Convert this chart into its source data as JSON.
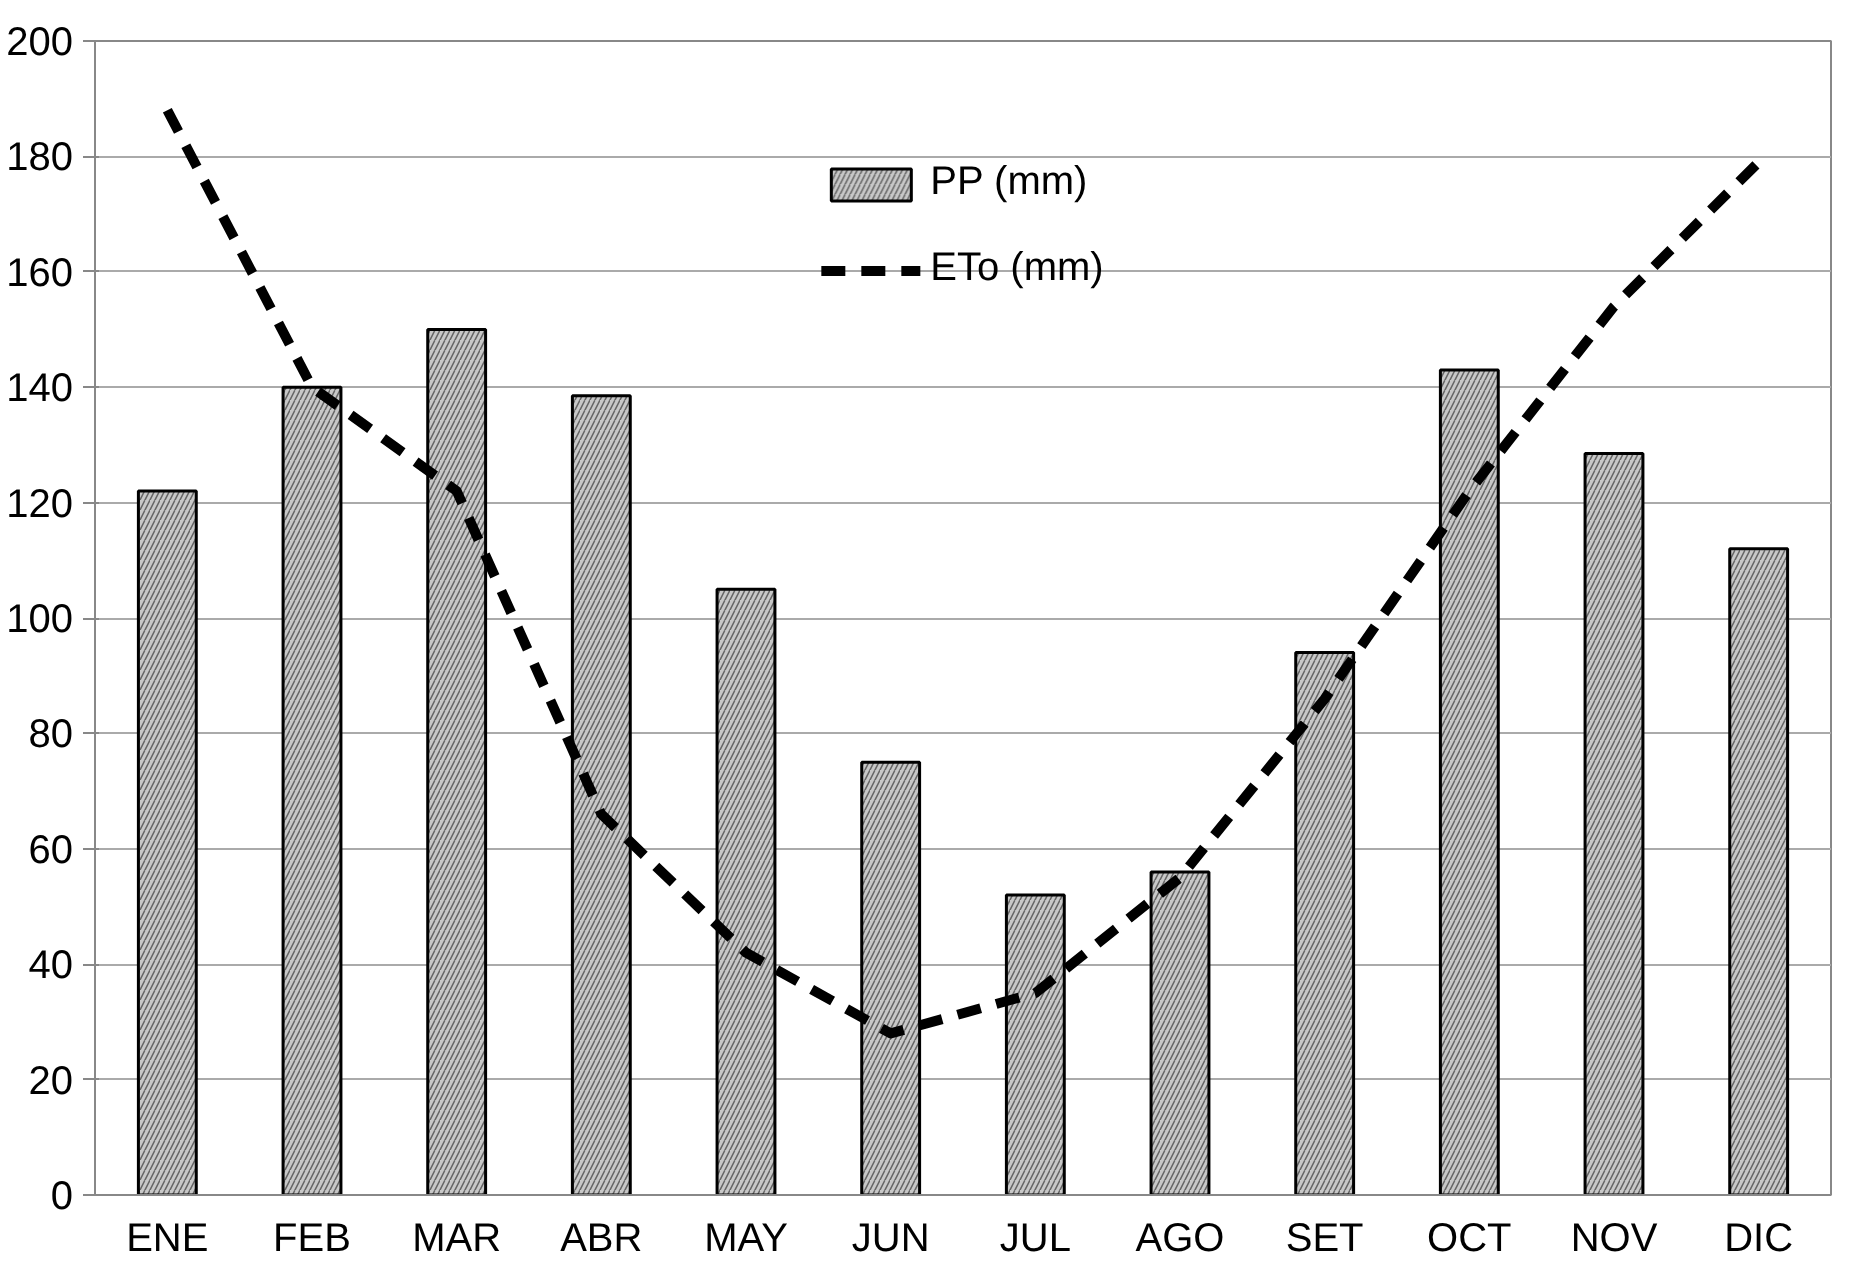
{
  "chart_data": {
    "type": "bar",
    "categories": [
      "ENE",
      "FEB",
      "MAR",
      "ABR",
      "MAY",
      "JUN",
      "JUL",
      "AGO",
      "SET",
      "OCT",
      "NOV",
      "DIC"
    ],
    "series": [
      {
        "name": "PP (mm)",
        "color": "#c8c8c8",
        "values": [
          122,
          140,
          150,
          138.5,
          105,
          75,
          52,
          56,
          94,
          143,
          128.5,
          112
        ]
      },
      {
        "name": "ETo (mm)",
        "type": "line",
        "color": "#000000",
        "line_style": "dashed",
        "values": [
          188,
          140,
          122,
          66,
          42,
          28,
          35,
          55,
          86,
          122,
          154,
          179
        ]
      }
    ],
    "ylim": [
      0,
      200
    ],
    "yticks": [
      0,
      20,
      40,
      60,
      80,
      100,
      120,
      140,
      160,
      180,
      200
    ],
    "grid": "y",
    "legend": "top"
  }
}
